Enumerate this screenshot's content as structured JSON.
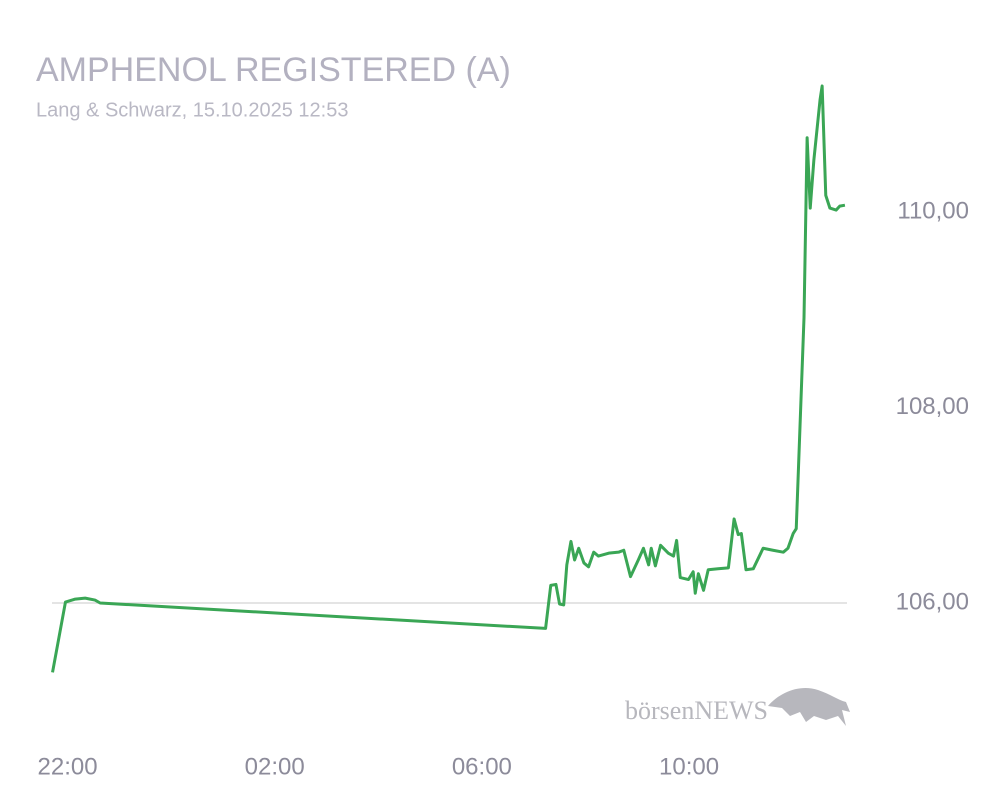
{
  "chart_data": {
    "type": "line",
    "title": "AMPHENOL REGISTERED (A)",
    "subtitle": "Lang & Schwarz, 15.10.2025 12:53",
    "watermark": "börsenNEWS",
    "x": [
      21.71,
      21.96,
      22.15,
      22.34,
      22.53,
      22.63,
      31.23,
      31.33,
      31.43,
      31.5,
      31.58,
      31.64,
      31.72,
      31.79,
      31.87,
      31.97,
      32.06,
      32.16,
      32.25,
      32.45,
      32.64,
      32.74,
      32.87,
      33.02,
      33.12,
      33.22,
      33.27,
      33.35,
      33.45,
      33.6,
      33.7,
      33.76,
      33.83,
      33.99,
      34.08,
      34.12,
      34.18,
      34.28,
      34.37,
      34.56,
      34.76,
      34.87,
      34.95,
      35.01,
      35.1,
      35.24,
      35.43,
      35.62,
      35.82,
      35.91,
      36.01,
      36.07,
      36.22,
      36.28,
      36.34,
      36.41,
      36.53,
      36.57,
      36.64,
      36.72,
      36.84,
      36.91,
      37.01
    ],
    "series": [
      {
        "color": "#3aa655",
        "values": [
          105.29,
          106.01,
          106.04,
          106.05,
          106.03,
          106.0,
          105.74,
          106.18,
          106.19,
          105.99,
          105.98,
          106.39,
          106.63,
          106.44,
          106.56,
          106.41,
          106.37,
          106.52,
          106.48,
          106.51,
          106.52,
          106.54,
          106.27,
          106.44,
          106.56,
          106.39,
          106.56,
          106.38,
          106.59,
          106.51,
          106.48,
          106.64,
          106.26,
          106.24,
          106.32,
          106.1,
          106.3,
          106.13,
          106.34,
          106.35,
          106.36,
          106.86,
          106.7,
          106.71,
          106.34,
          106.35,
          106.56,
          106.54,
          106.52,
          106.56,
          106.71,
          106.76,
          108.92,
          110.76,
          110.04,
          110.53,
          111.15,
          111.29,
          110.17,
          110.04,
          110.02,
          110.06,
          110.07
        ]
      }
    ],
    "xlim": [
      21.7,
      37.05
    ],
    "xticks": [
      {
        "value": 22,
        "label": "22:00"
      },
      {
        "value": 26,
        "label": "02:00"
      },
      {
        "value": 30,
        "label": "06:00"
      },
      {
        "value": 34,
        "label": "10:00"
      }
    ],
    "ylim": [
      105.0,
      111.5
    ],
    "yticks": [
      {
        "value": 106,
        "label": "106,00"
      },
      {
        "value": 108,
        "label": "108,00"
      },
      {
        "value": 110,
        "label": "110,00"
      }
    ],
    "reference_line": 106
  }
}
